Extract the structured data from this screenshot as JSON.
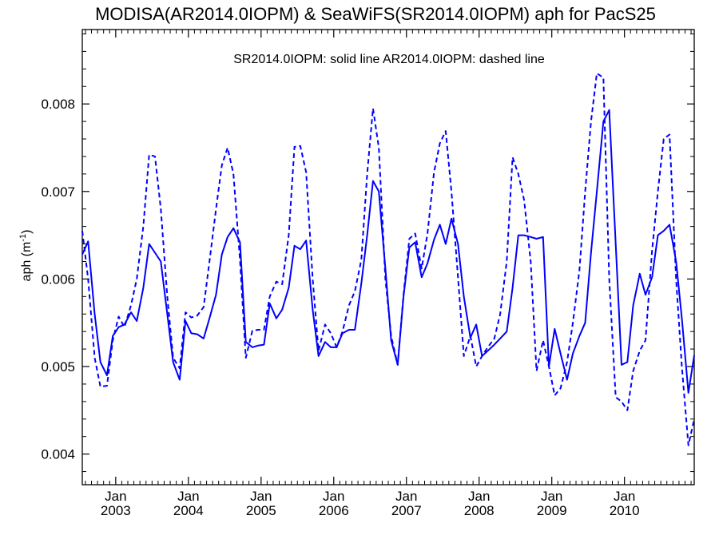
{
  "chart_data": {
    "type": "line",
    "title": "MODISA(AR2014.0IOPM) & SeaWiFS(SR2014.0IOPM)  aph for PacS25",
    "legend_text": "SR2014.0IOPM: solid line   AR2014.0IOPM: dashed line",
    "ylabel_main": "aph (m",
    "ylabel_sup": "-1",
    "ylabel_close": ")",
    "ylim": [
      0.00365,
      0.00885
    ],
    "xlim": [
      2002.54,
      2010.96
    ],
    "y_ticks": [
      {
        "value": 0.004,
        "label": "0.004"
      },
      {
        "value": 0.005,
        "label": "0.005"
      },
      {
        "value": 0.006,
        "label": "0.006"
      },
      {
        "value": 0.007,
        "label": "0.007"
      },
      {
        "value": 0.008,
        "label": "0.008"
      }
    ],
    "x_ticks": [
      {
        "value": 2003.0,
        "month": "Jan",
        "year": "2003"
      },
      {
        "value": 2004.0,
        "month": "Jan",
        "year": "2004"
      },
      {
        "value": 2005.0,
        "month": "Jan",
        "year": "2005"
      },
      {
        "value": 2006.0,
        "month": "Jan",
        "year": "2006"
      },
      {
        "value": 2007.0,
        "month": "Jan",
        "year": "2007"
      },
      {
        "value": 2008.0,
        "month": "Jan",
        "year": "2008"
      },
      {
        "value": 2009.0,
        "month": "Jan",
        "year": "2009"
      },
      {
        "value": 2010.0,
        "month": "Jan",
        "year": "2010"
      }
    ],
    "series": [
      {
        "name": "SR2014.0IOPM",
        "style": "solid",
        "color": "#0000ff",
        "x": [
          2002.54,
          2002.62,
          2002.71,
          2002.79,
          2002.88,
          2002.96,
          2003.04,
          2003.12,
          2003.21,
          2003.29,
          2003.38,
          2003.46,
          2003.54,
          2003.62,
          2003.71,
          2003.79,
          2003.88,
          2003.96,
          2004.04,
          2004.12,
          2004.21,
          2004.29,
          2004.38,
          2004.46,
          2004.54,
          2004.62,
          2004.71,
          2004.79,
          2004.88,
          2004.96,
          2005.04,
          2005.12,
          2005.21,
          2005.29,
          2005.38,
          2005.46,
          2005.54,
          2005.62,
          2005.71,
          2005.79,
          2005.88,
          2005.96,
          2006.04,
          2006.12,
          2006.21,
          2006.29,
          2006.38,
          2006.46,
          2006.54,
          2006.62,
          2006.71,
          2006.79,
          2006.88,
          2006.96,
          2007.04,
          2007.12,
          2007.21,
          2007.29,
          2007.38,
          2007.46,
          2007.54,
          2007.62,
          2007.71,
          2007.79,
          2007.88,
          2007.96,
          2008.04,
          2008.12,
          2008.21,
          2008.29,
          2008.38,
          2008.46,
          2008.54,
          2008.62,
          2008.71,
          2008.79,
          2008.88,
          2008.96,
          2009.04,
          2009.12,
          2009.21,
          2009.29,
          2009.38,
          2009.46,
          2009.54,
          2009.62,
          2009.71,
          2009.79,
          2009.88,
          2009.96,
          2010.04,
          2010.12,
          2010.21,
          2010.29,
          2010.38,
          2010.46,
          2010.54,
          2010.62,
          2010.71,
          2010.79,
          2010.88,
          2010.96
        ],
        "y": [
          0.00628,
          0.00643,
          0.0056,
          0.00505,
          0.0049,
          0.00535,
          0.00545,
          0.00548,
          0.00562,
          0.00552,
          0.0059,
          0.0064,
          0.0063,
          0.0062,
          0.0056,
          0.00505,
          0.00485,
          0.00552,
          0.00538,
          0.00537,
          0.00532,
          0.00555,
          0.00582,
          0.00628,
          0.00648,
          0.00658,
          0.00642,
          0.00528,
          0.00522,
          0.00524,
          0.00525,
          0.00572,
          0.00555,
          0.00565,
          0.0059,
          0.00638,
          0.00634,
          0.00644,
          0.00565,
          0.00512,
          0.00528,
          0.00522,
          0.00522,
          0.00538,
          0.00542,
          0.00542,
          0.00595,
          0.0065,
          0.00712,
          0.007,
          0.00612,
          0.0053,
          0.00502,
          0.0058,
          0.00636,
          0.00642,
          0.00602,
          0.00618,
          0.00645,
          0.00662,
          0.0064,
          0.00669,
          0.0064,
          0.0058,
          0.00533,
          0.00548,
          0.00512,
          0.00518,
          0.00525,
          0.00532,
          0.0054,
          0.0059,
          0.0065,
          0.0065,
          0.00648,
          0.00646,
          0.00648,
          0.005,
          0.00543,
          0.00515,
          0.00485,
          0.00515,
          0.00535,
          0.0055,
          0.0063,
          0.007,
          0.0078,
          0.00793,
          0.0064,
          0.00502,
          0.00505,
          0.0057,
          0.00606,
          0.00582,
          0.00602,
          0.0065,
          0.00655,
          0.00662,
          0.0062,
          0.00555,
          0.0047,
          0.00513
        ]
      },
      {
        "name": "AR2014.0IOPM",
        "style": "dashed",
        "color": "#0000ff",
        "x": [
          2002.54,
          2002.62,
          2002.71,
          2002.79,
          2002.88,
          2002.96,
          2003.04,
          2003.12,
          2003.21,
          2003.29,
          2003.38,
          2003.46,
          2003.54,
          2003.62,
          2003.71,
          2003.79,
          2003.88,
          2003.96,
          2004.04,
          2004.12,
          2004.21,
          2004.29,
          2004.38,
          2004.46,
          2004.54,
          2004.62,
          2004.71,
          2004.79,
          2004.88,
          2004.96,
          2005.04,
          2005.12,
          2005.21,
          2005.29,
          2005.38,
          2005.46,
          2005.54,
          2005.62,
          2005.71,
          2005.79,
          2005.88,
          2005.96,
          2006.04,
          2006.12,
          2006.21,
          2006.29,
          2006.38,
          2006.46,
          2006.54,
          2006.62,
          2006.71,
          2006.79,
          2006.88,
          2006.96,
          2007.04,
          2007.12,
          2007.21,
          2007.29,
          2007.38,
          2007.46,
          2007.54,
          2007.62,
          2007.71,
          2007.79,
          2007.88,
          2007.96,
          2008.04,
          2008.12,
          2008.21,
          2008.29,
          2008.38,
          2008.46,
          2008.54,
          2008.62,
          2008.71,
          2008.79,
          2008.88,
          2008.96,
          2009.04,
          2009.12,
          2009.21,
          2009.29,
          2009.38,
          2009.46,
          2009.54,
          2009.62,
          2009.71,
          2009.79,
          2009.88,
          2009.96,
          2010.04,
          2010.12,
          2010.21,
          2010.29,
          2010.38,
          2010.46,
          2010.54,
          2010.62,
          2010.71,
          2010.79,
          2010.88,
          2010.96
        ],
        "y": [
          0.00655,
          0.006,
          0.0051,
          0.00477,
          0.00478,
          0.0053,
          0.00557,
          0.00545,
          0.0057,
          0.006,
          0.0066,
          0.00742,
          0.0074,
          0.0068,
          0.0058,
          0.0051,
          0.00498,
          0.00562,
          0.00556,
          0.00558,
          0.00568,
          0.0062,
          0.0068,
          0.0073,
          0.0075,
          0.0072,
          0.00622,
          0.0051,
          0.00541,
          0.00542,
          0.00542,
          0.0058,
          0.00597,
          0.00594,
          0.0065,
          0.00751,
          0.00752,
          0.00722,
          0.006,
          0.00518,
          0.00548,
          0.00538,
          0.00522,
          0.0054,
          0.0057,
          0.00586,
          0.00622,
          0.0072,
          0.00795,
          0.0075,
          0.006,
          0.00535,
          0.00502,
          0.00582,
          0.00646,
          0.00652,
          0.00612,
          0.00652,
          0.00722,
          0.00755,
          0.00769,
          0.007,
          0.00602,
          0.00512,
          0.00535,
          0.005,
          0.00512,
          0.00522,
          0.00532,
          0.0056,
          0.0062,
          0.00739,
          0.0072,
          0.0069,
          0.0062,
          0.00495,
          0.0053,
          0.005,
          0.00467,
          0.00475,
          0.00505,
          0.0055,
          0.0061,
          0.007,
          0.0078,
          0.00835,
          0.0083,
          0.006,
          0.00465,
          0.0046,
          0.0045,
          0.00495,
          0.00518,
          0.0053,
          0.00632,
          0.007,
          0.0076,
          0.00765,
          0.006,
          0.005,
          0.0041,
          0.0044
        ]
      }
    ]
  }
}
